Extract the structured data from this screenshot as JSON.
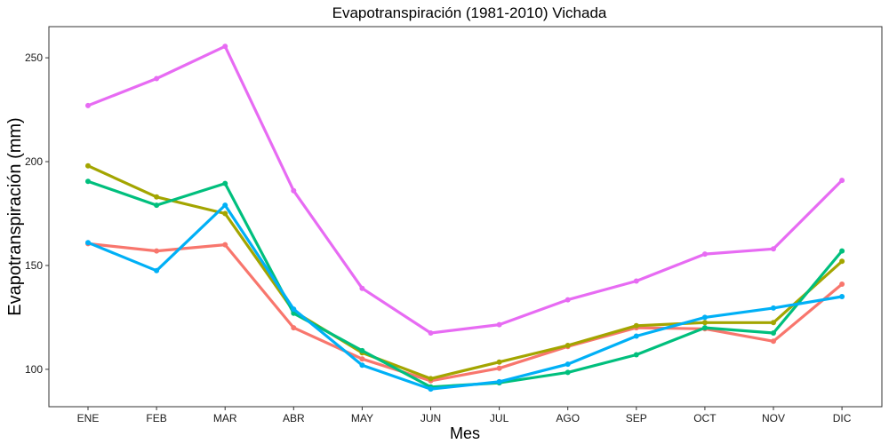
{
  "chart_data": {
    "type": "line",
    "title": "Evapotranspiración (1981-2010)  Vichada",
    "xlabel": "Mes",
    "ylabel": "Evapotranspiración (mm)",
    "categories": [
      "ENE",
      "FEB",
      "MAR",
      "ABR",
      "MAY",
      "JUN",
      "JUL",
      "AGO",
      "SEP",
      "OCT",
      "NOV",
      "DIC"
    ],
    "yticks": [
      100,
      150,
      200,
      250
    ],
    "ylim": [
      82,
      265
    ],
    "grid": false,
    "legend": "none",
    "series": [
      {
        "color": "#F8766D",
        "values": [
          160.5,
          157,
          160,
          120,
          105,
          94.5,
          100.5,
          111,
          120,
          119.5,
          113.5,
          141
        ]
      },
      {
        "color": "#A3A500",
        "values": [
          198,
          183,
          175,
          128,
          108,
          95.5,
          103.5,
          111.5,
          121,
          122.5,
          122.5,
          152
        ]
      },
      {
        "color": "#00BF7D",
        "values": [
          190.5,
          179,
          189.5,
          127,
          109,
          91.5,
          93.5,
          98.5,
          107,
          120,
          117.5,
          157
        ]
      },
      {
        "color": "#00B0F6",
        "values": [
          161,
          147.5,
          179,
          129,
          102,
          90.5,
          94,
          102.5,
          116,
          125,
          129.5,
          135
        ]
      },
      {
        "color": "#E76BF3",
        "values": [
          227,
          240,
          255.5,
          186,
          139,
          117.5,
          121.5,
          133.5,
          142.5,
          155.5,
          158,
          191
        ]
      }
    ]
  }
}
